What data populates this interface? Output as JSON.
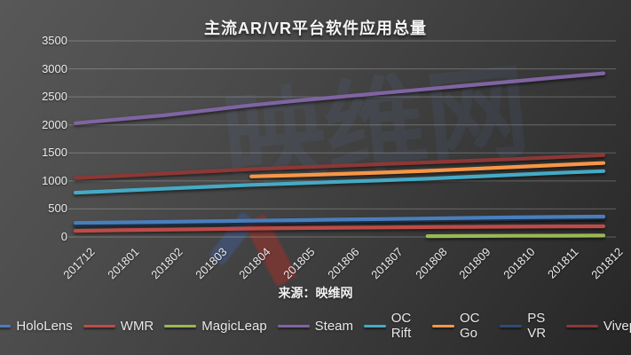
{
  "title": "主流AR/VR平台软件应用总量",
  "source_label": "来源：映维网",
  "watermark_text": "映维网",
  "chart_data": {
    "type": "line",
    "title": "主流AR/VR平台软件应用总量",
    "xlabel": "",
    "ylabel": "",
    "ylim": [
      0,
      3500
    ],
    "ytick_step": 500,
    "grid": true,
    "legend_position": "bottom",
    "categories": [
      "201712",
      "201801",
      "201802",
      "201803",
      "201804",
      "201805",
      "201806",
      "201807",
      "201808",
      "201809",
      "201810",
      "201811",
      "201812"
    ],
    "series": [
      {
        "name": "HoloLens",
        "color": "#4a7ebb",
        "values": [
          250,
          260,
          270,
          280,
          290,
          300,
          310,
          320,
          330,
          340,
          350,
          358,
          365
        ]
      },
      {
        "name": "WMR",
        "color": "#be4b48",
        "values": [
          110,
          120,
          130,
          140,
          150,
          158,
          164,
          170,
          175,
          180,
          184,
          188,
          190
        ]
      },
      {
        "name": "MagicLeap",
        "color": "#98b954",
        "values": [
          null,
          null,
          null,
          null,
          null,
          null,
          null,
          null,
          15,
          18,
          20,
          22,
          25
        ]
      },
      {
        "name": "Steam",
        "color": "#8064a2",
        "values": [
          2030,
          2100,
          2170,
          2260,
          2350,
          2430,
          2500,
          2570,
          2640,
          2710,
          2780,
          2850,
          2920
        ]
      },
      {
        "name": "OC Rift",
        "color": "#45aac5",
        "values": [
          790,
          825,
          860,
          895,
          930,
          955,
          985,
          1010,
          1040,
          1075,
          1110,
          1145,
          1175
        ]
      },
      {
        "name": "OC Go",
        "color": "#f79646",
        "values": [
          null,
          null,
          null,
          null,
          1080,
          1100,
          1125,
          1150,
          1180,
          1215,
          1250,
          1285,
          1320
        ]
      },
      {
        "name": "PS VR",
        "color": "#2c4d75",
        "values": [
          215,
          226,
          237,
          248,
          259,
          270,
          280,
          290,
          300,
          310,
          320,
          330,
          340
        ]
      },
      {
        "name": "Viveport",
        "color": "#8c3836",
        "values": [
          1050,
          1090,
          1130,
          1170,
          1210,
          1240,
          1270,
          1300,
          1330,
          1360,
          1390,
          1425,
          1460
        ]
      }
    ]
  }
}
